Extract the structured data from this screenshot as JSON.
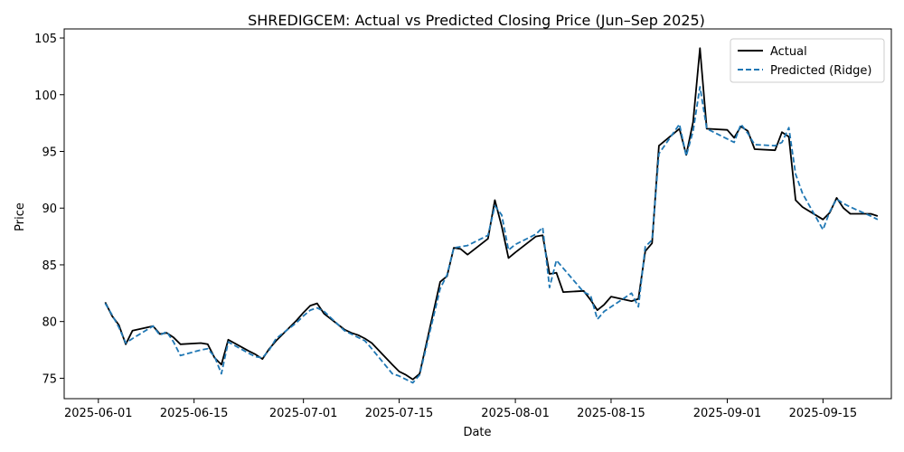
{
  "chart_data": {
    "type": "line",
    "title": "SHREDIGCEM: Actual vs Predicted Closing Price (Jun–Sep 2025)",
    "xlabel": "Date",
    "ylabel": "Price",
    "xlim": [
      "2025-05-27",
      "2025-09-25"
    ],
    "ylim": [
      73.2,
      105.8
    ],
    "x_ticks": [
      "2025-06-01",
      "2025-06-15",
      "2025-07-01",
      "2025-07-15",
      "2025-08-01",
      "2025-08-15",
      "2025-09-01",
      "2025-09-15"
    ],
    "y_ticks": [
      75,
      80,
      85,
      90,
      95,
      100,
      105
    ],
    "legend_position": "top-right",
    "series": [
      {
        "name": "Actual",
        "color": "#000000",
        "style": "solid",
        "points": [
          [
            "2025-06-02",
            81.7
          ],
          [
            "2025-06-03",
            80.5
          ],
          [
            "2025-06-04",
            79.7
          ],
          [
            "2025-06-05",
            78.0
          ],
          [
            "2025-06-06",
            79.2
          ],
          [
            "2025-06-09",
            79.6
          ],
          [
            "2025-06-10",
            78.9
          ],
          [
            "2025-06-11",
            79.0
          ],
          [
            "2025-06-12",
            78.6
          ],
          [
            "2025-06-13",
            78.0
          ],
          [
            "2025-06-16",
            78.1
          ],
          [
            "2025-06-17",
            78.0
          ],
          [
            "2025-06-18",
            76.8
          ],
          [
            "2025-06-19",
            76.2
          ],
          [
            "2025-06-20",
            78.4
          ],
          [
            "2025-06-23",
            77.4
          ],
          [
            "2025-06-24",
            77.1
          ],
          [
            "2025-06-25",
            76.7
          ],
          [
            "2025-06-26",
            77.6
          ],
          [
            "2025-06-27",
            78.3
          ],
          [
            "2025-06-30",
            80.1
          ],
          [
            "2025-07-01",
            80.8
          ],
          [
            "2025-07-02",
            81.4
          ],
          [
            "2025-07-03",
            81.6
          ],
          [
            "2025-07-04",
            80.7
          ],
          [
            "2025-07-07",
            79.3
          ],
          [
            "2025-07-08",
            79.0
          ],
          [
            "2025-07-09",
            78.8
          ],
          [
            "2025-07-10",
            78.5
          ],
          [
            "2025-07-11",
            78.1
          ],
          [
            "2025-07-14",
            76.2
          ],
          [
            "2025-07-15",
            75.6
          ],
          [
            "2025-07-16",
            75.3
          ],
          [
            "2025-07-17",
            74.9
          ],
          [
            "2025-07-18",
            75.4
          ],
          [
            "2025-07-21",
            83.5
          ],
          [
            "2025-07-22",
            84.0
          ],
          [
            "2025-07-23",
            86.5
          ],
          [
            "2025-07-24",
            86.4
          ],
          [
            "2025-07-25",
            85.9
          ],
          [
            "2025-07-28",
            87.3
          ],
          [
            "2025-07-29",
            90.7
          ],
          [
            "2025-07-30",
            88.4
          ],
          [
            "2025-07-31",
            85.6
          ],
          [
            "2025-08-01",
            86.1
          ],
          [
            "2025-08-04",
            87.5
          ],
          [
            "2025-08-05",
            87.6
          ],
          [
            "2025-08-06",
            84.2
          ],
          [
            "2025-08-07",
            84.3
          ],
          [
            "2025-08-08",
            82.6
          ],
          [
            "2025-08-11",
            82.7
          ],
          [
            "2025-08-12",
            81.9
          ],
          [
            "2025-08-13",
            81.0
          ],
          [
            "2025-08-14",
            81.5
          ],
          [
            "2025-08-15",
            82.2
          ],
          [
            "2025-08-18",
            81.8
          ],
          [
            "2025-08-19",
            82.0
          ],
          [
            "2025-08-20",
            86.2
          ],
          [
            "2025-08-21",
            86.9
          ],
          [
            "2025-08-22",
            95.5
          ],
          [
            "2025-08-25",
            97.0
          ],
          [
            "2025-08-26",
            94.7
          ],
          [
            "2025-08-27",
            97.6
          ],
          [
            "2025-08-28",
            104.1
          ],
          [
            "2025-08-29",
            97.0
          ],
          [
            "2025-09-01",
            96.9
          ],
          [
            "2025-09-02",
            96.2
          ],
          [
            "2025-09-03",
            97.2
          ],
          [
            "2025-09-04",
            96.8
          ],
          [
            "2025-09-05",
            95.2
          ],
          [
            "2025-09-08",
            95.1
          ],
          [
            "2025-09-09",
            96.7
          ],
          [
            "2025-09-10",
            96.3
          ],
          [
            "2025-09-11",
            90.7
          ],
          [
            "2025-09-12",
            90.1
          ],
          [
            "2025-09-15",
            89.0
          ],
          [
            "2025-09-16",
            89.6
          ],
          [
            "2025-09-17",
            90.9
          ],
          [
            "2025-09-18",
            90.0
          ],
          [
            "2025-09-19",
            89.5
          ],
          [
            "2025-09-22",
            89.5
          ],
          [
            "2025-09-23",
            89.3
          ]
        ]
      },
      {
        "name": "Predicted (Ridge)",
        "color": "#1f77b4",
        "style": "dashed",
        "points": [
          [
            "2025-06-02",
            81.6
          ],
          [
            "2025-06-03",
            80.6
          ],
          [
            "2025-06-04",
            79.5
          ],
          [
            "2025-06-05",
            78.1
          ],
          [
            "2025-06-06",
            78.5
          ],
          [
            "2025-06-09",
            79.6
          ],
          [
            "2025-06-10",
            78.8
          ],
          [
            "2025-06-11",
            79.1
          ],
          [
            "2025-06-12",
            78.2
          ],
          [
            "2025-06-13",
            77.0
          ],
          [
            "2025-06-16",
            77.5
          ],
          [
            "2025-06-17",
            77.6
          ],
          [
            "2025-06-18",
            76.9
          ],
          [
            "2025-06-19",
            75.4
          ],
          [
            "2025-06-20",
            78.2
          ],
          [
            "2025-06-23",
            77.2
          ],
          [
            "2025-06-24",
            76.9
          ],
          [
            "2025-06-25",
            76.8
          ],
          [
            "2025-06-26",
            77.5
          ],
          [
            "2025-06-27",
            78.5
          ],
          [
            "2025-06-30",
            79.9
          ],
          [
            "2025-07-01",
            80.5
          ],
          [
            "2025-07-02",
            81.0
          ],
          [
            "2025-07-03",
            81.2
          ],
          [
            "2025-07-04",
            80.9
          ],
          [
            "2025-07-07",
            79.2
          ],
          [
            "2025-07-08",
            78.9
          ],
          [
            "2025-07-09",
            78.6
          ],
          [
            "2025-07-10",
            78.3
          ],
          [
            "2025-07-11",
            77.6
          ],
          [
            "2025-07-14",
            75.4
          ],
          [
            "2025-07-15",
            75.2
          ],
          [
            "2025-07-16",
            74.9
          ],
          [
            "2025-07-17",
            74.6
          ],
          [
            "2025-07-18",
            75.3
          ],
          [
            "2025-07-21",
            82.9
          ],
          [
            "2025-07-22",
            84.1
          ],
          [
            "2025-07-23",
            86.5
          ],
          [
            "2025-07-24",
            86.6
          ],
          [
            "2025-07-25",
            86.7
          ],
          [
            "2025-07-28",
            87.6
          ],
          [
            "2025-07-29",
            90.2
          ],
          [
            "2025-07-30",
            89.4
          ],
          [
            "2025-07-31",
            86.3
          ],
          [
            "2025-08-01",
            86.8
          ],
          [
            "2025-08-04",
            87.7
          ],
          [
            "2025-08-05",
            88.3
          ],
          [
            "2025-08-06",
            83.0
          ],
          [
            "2025-08-07",
            85.4
          ],
          [
            "2025-08-08",
            84.7
          ],
          [
            "2025-08-11",
            82.6
          ],
          [
            "2025-08-12",
            82.3
          ],
          [
            "2025-08-13",
            80.2
          ],
          [
            "2025-08-14",
            80.9
          ],
          [
            "2025-08-15",
            81.3
          ],
          [
            "2025-08-18",
            82.5
          ],
          [
            "2025-08-19",
            81.3
          ],
          [
            "2025-08-20",
            86.6
          ],
          [
            "2025-08-21",
            87.2
          ],
          [
            "2025-08-22",
            94.8
          ],
          [
            "2025-08-25",
            97.4
          ],
          [
            "2025-08-26",
            94.6
          ],
          [
            "2025-08-27",
            96.8
          ],
          [
            "2025-08-28",
            100.7
          ],
          [
            "2025-08-29",
            97.0
          ],
          [
            "2025-09-01",
            96.1
          ],
          [
            "2025-09-02",
            95.8
          ],
          [
            "2025-09-03",
            97.4
          ],
          [
            "2025-09-04",
            96.6
          ],
          [
            "2025-09-05",
            95.6
          ],
          [
            "2025-09-08",
            95.5
          ],
          [
            "2025-09-09",
            95.8
          ],
          [
            "2025-09-10",
            97.1
          ],
          [
            "2025-09-11",
            93.0
          ],
          [
            "2025-09-12",
            91.3
          ],
          [
            "2025-09-15",
            88.1
          ],
          [
            "2025-09-16",
            89.7
          ],
          [
            "2025-09-17",
            90.8
          ],
          [
            "2025-09-18",
            90.4
          ],
          [
            "2025-09-19",
            90.1
          ],
          [
            "2025-09-22",
            89.3
          ],
          [
            "2025-09-23",
            89.0
          ]
        ]
      }
    ]
  }
}
